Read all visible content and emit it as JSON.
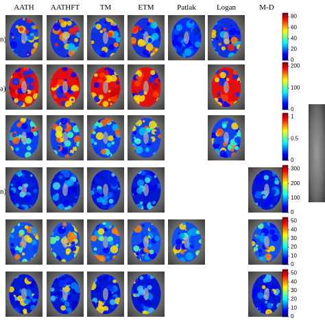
{
  "columns": [
    "AATH",
    "AATHFT",
    "TM",
    "ETM",
    "Patlak",
    "Logan",
    "M-D"
  ],
  "rows": [
    {
      "label": "n)",
      "colorbar_ticks": [
        0,
        20,
        40,
        60,
        80
      ]
    },
    {
      "label": "a)",
      "colorbar_ticks": [
        0,
        100,
        200
      ]
    },
    {
      "colorbar_ticks": [
        0,
        0.5,
        1
      ]
    },
    {
      "label": "n)",
      "colorbar_ticks": [
        0,
        100,
        200,
        300
      ]
    },
    {
      "colorbar_ticks": [
        0,
        10,
        20,
        30,
        40,
        50
      ]
    },
    {
      "colorbar_ticks": [
        0,
        10,
        20,
        30,
        40,
        50
      ]
    }
  ]
}
